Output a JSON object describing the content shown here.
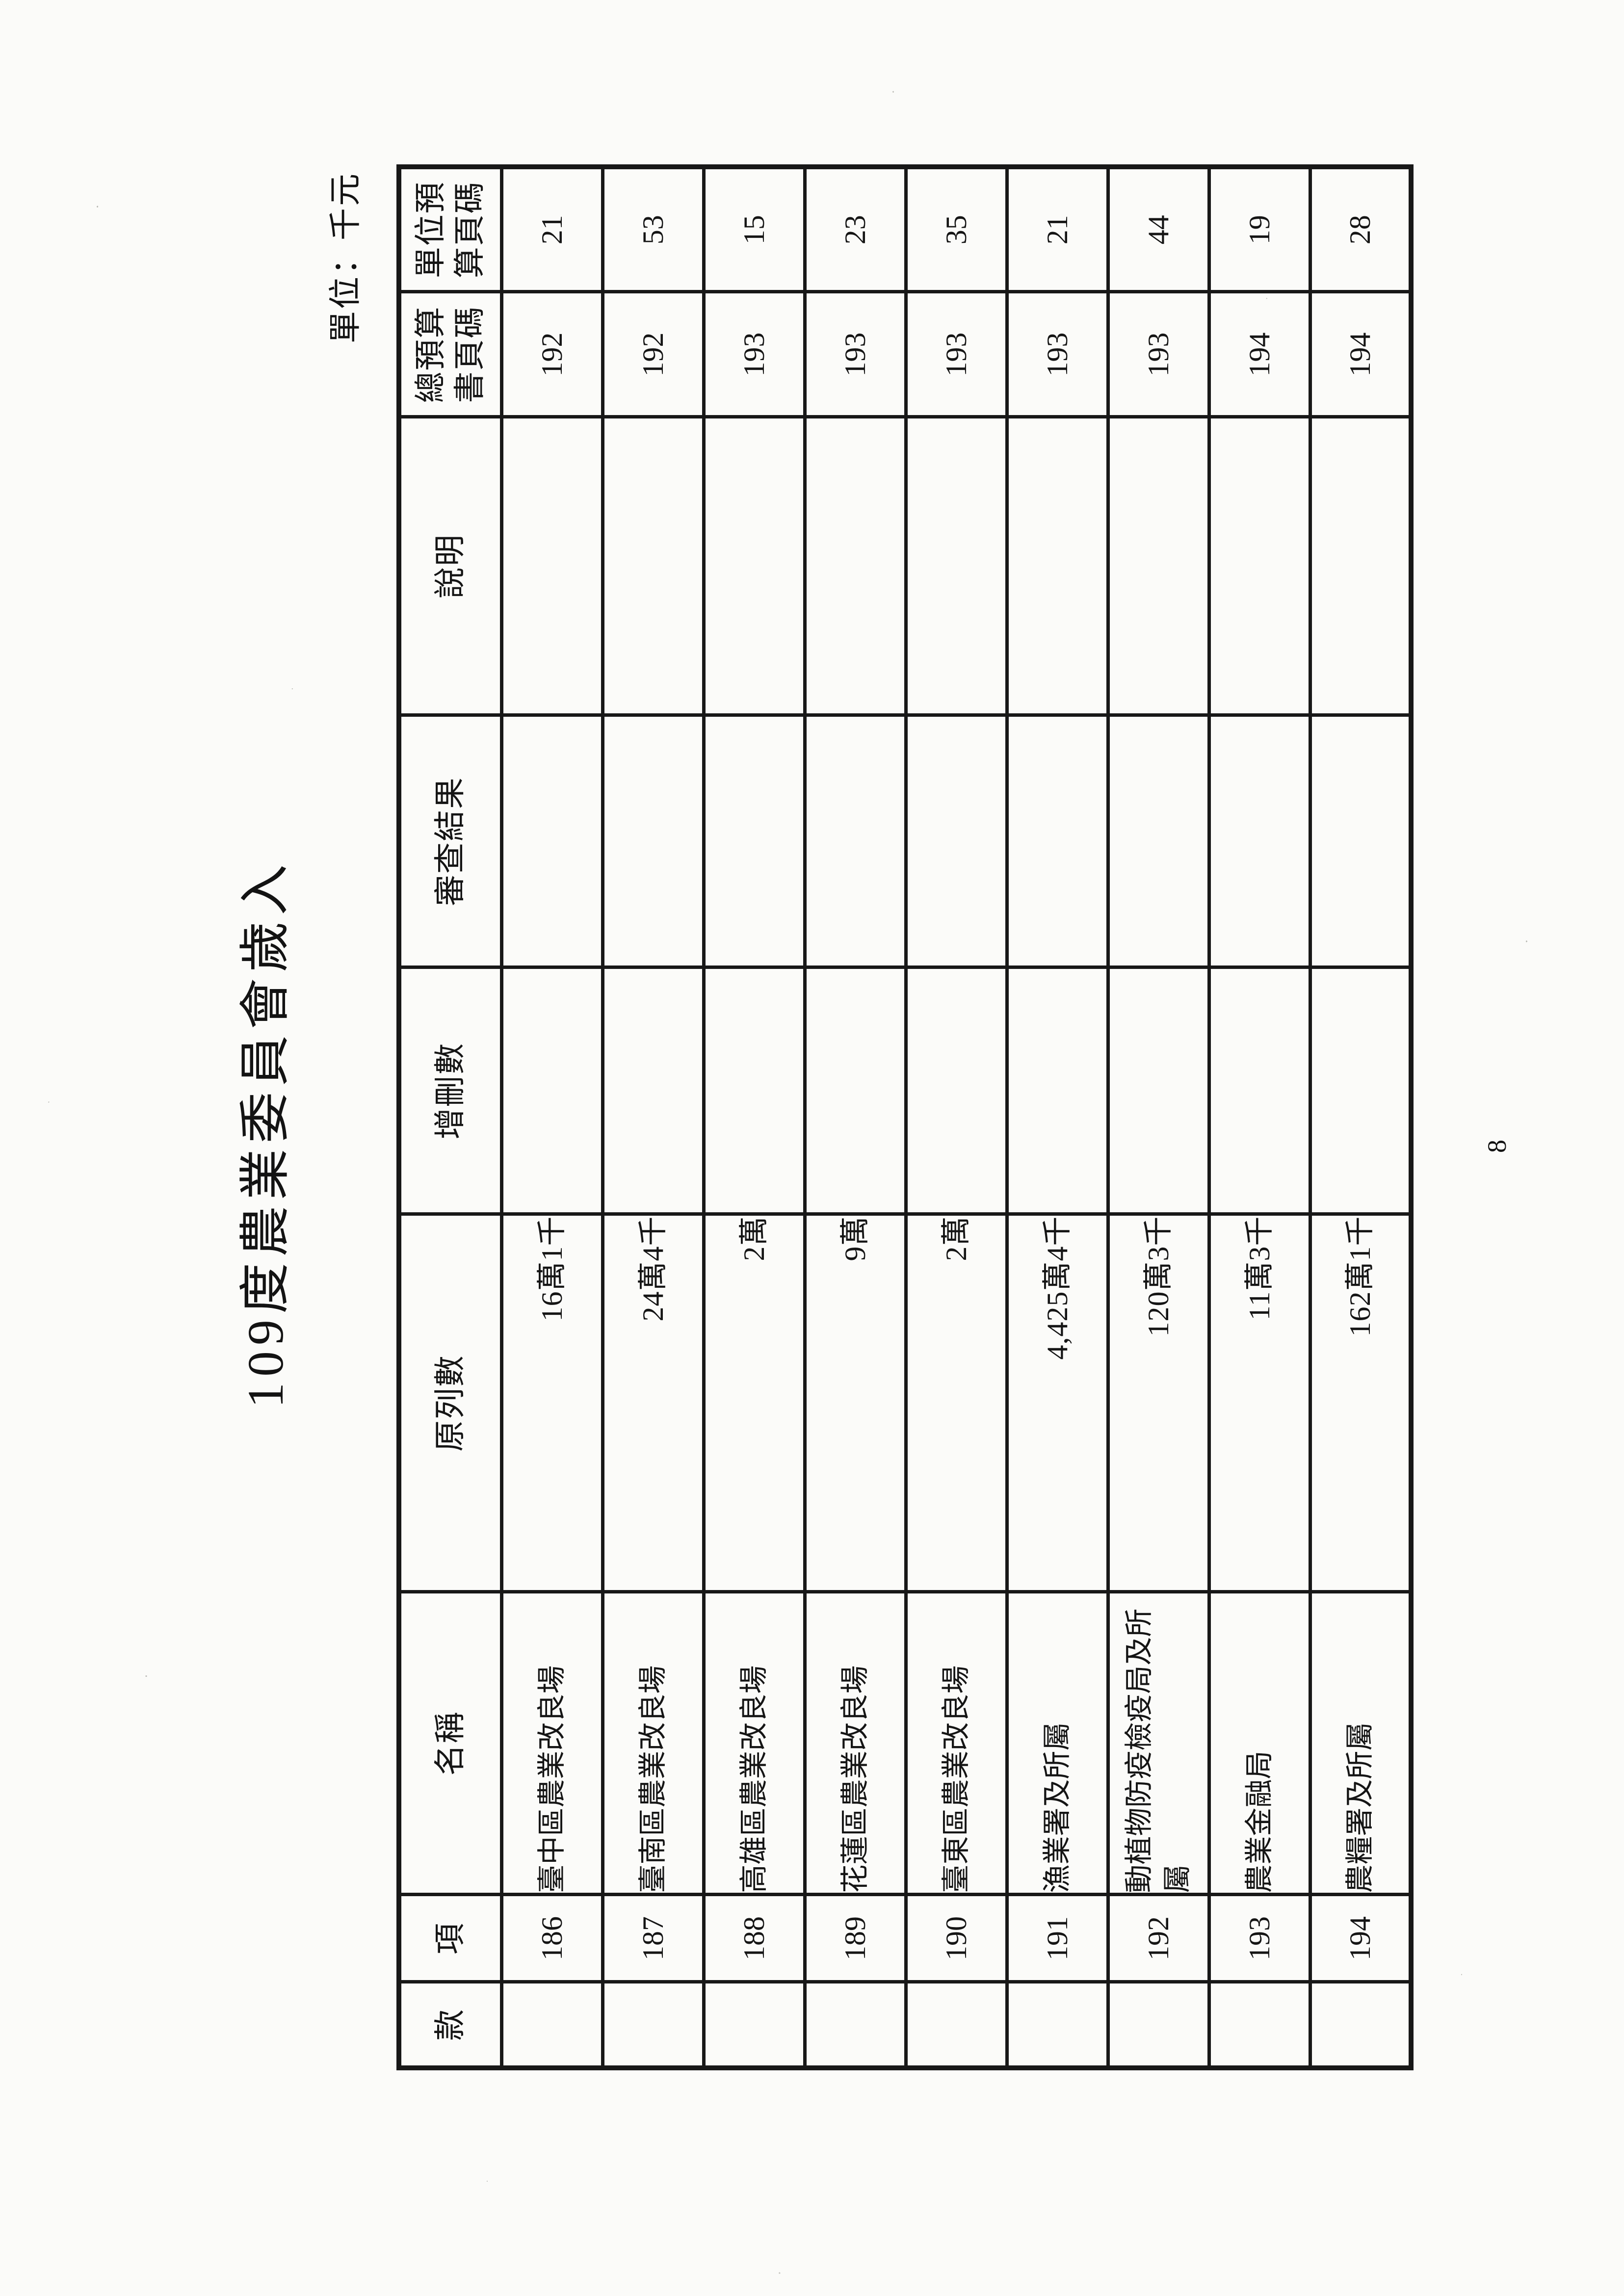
{
  "page": {
    "title": "109度農業委員會歲入",
    "unit_label": "單位：千元",
    "page_number": "8"
  },
  "table": {
    "headers": {
      "kuan": "款",
      "hsiang": "項",
      "name": "名稱",
      "original": "原列數",
      "change": "增刪數",
      "review": "審查結果",
      "note": "說明",
      "total_budget_page": "總預算書頁碼",
      "unit_budget_page": "單位預算頁碼"
    },
    "rows": [
      {
        "kuan": "",
        "hsiang": "186",
        "name": "臺中區農業改良場",
        "original": "16萬1千",
        "change": "",
        "review": "",
        "note": "",
        "total_budget_page": "192",
        "unit_budget_page": "21"
      },
      {
        "kuan": "",
        "hsiang": "187",
        "name": "臺南區農業改良場",
        "original": "24萬4千",
        "change": "",
        "review": "",
        "note": "",
        "total_budget_page": "192",
        "unit_budget_page": "53"
      },
      {
        "kuan": "",
        "hsiang": "188",
        "name": "高雄區農業改良場",
        "original": "2萬",
        "change": "",
        "review": "",
        "note": "",
        "total_budget_page": "193",
        "unit_budget_page": "15"
      },
      {
        "kuan": "",
        "hsiang": "189",
        "name": "花蓮區農業改良場",
        "original": "9萬",
        "change": "",
        "review": "",
        "note": "",
        "total_budget_page": "193",
        "unit_budget_page": "23"
      },
      {
        "kuan": "",
        "hsiang": "190",
        "name": "臺東區農業改良場",
        "original": "2萬",
        "change": "",
        "review": "",
        "note": "",
        "total_budget_page": "193",
        "unit_budget_page": "35"
      },
      {
        "kuan": "",
        "hsiang": "191",
        "name": "漁業署及所屬",
        "original": "4,425萬4千",
        "change": "",
        "review": "",
        "note": "",
        "total_budget_page": "193",
        "unit_budget_page": "21"
      },
      {
        "kuan": "",
        "hsiang": "192",
        "name": "動植物防疫檢疫局及所屬",
        "original": "120萬3千",
        "change": "",
        "review": "",
        "note": "",
        "total_budget_page": "193",
        "unit_budget_page": "44"
      },
      {
        "kuan": "",
        "hsiang": "193",
        "name": "農業金融局",
        "original": "11萬3千",
        "change": "",
        "review": "",
        "note": "",
        "total_budget_page": "194",
        "unit_budget_page": "19"
      },
      {
        "kuan": "",
        "hsiang": "194",
        "name": "農糧署及所屬",
        "original": "162萬1千",
        "change": "",
        "review": "",
        "note": "",
        "total_budget_page": "194",
        "unit_budget_page": "28"
      }
    ]
  }
}
